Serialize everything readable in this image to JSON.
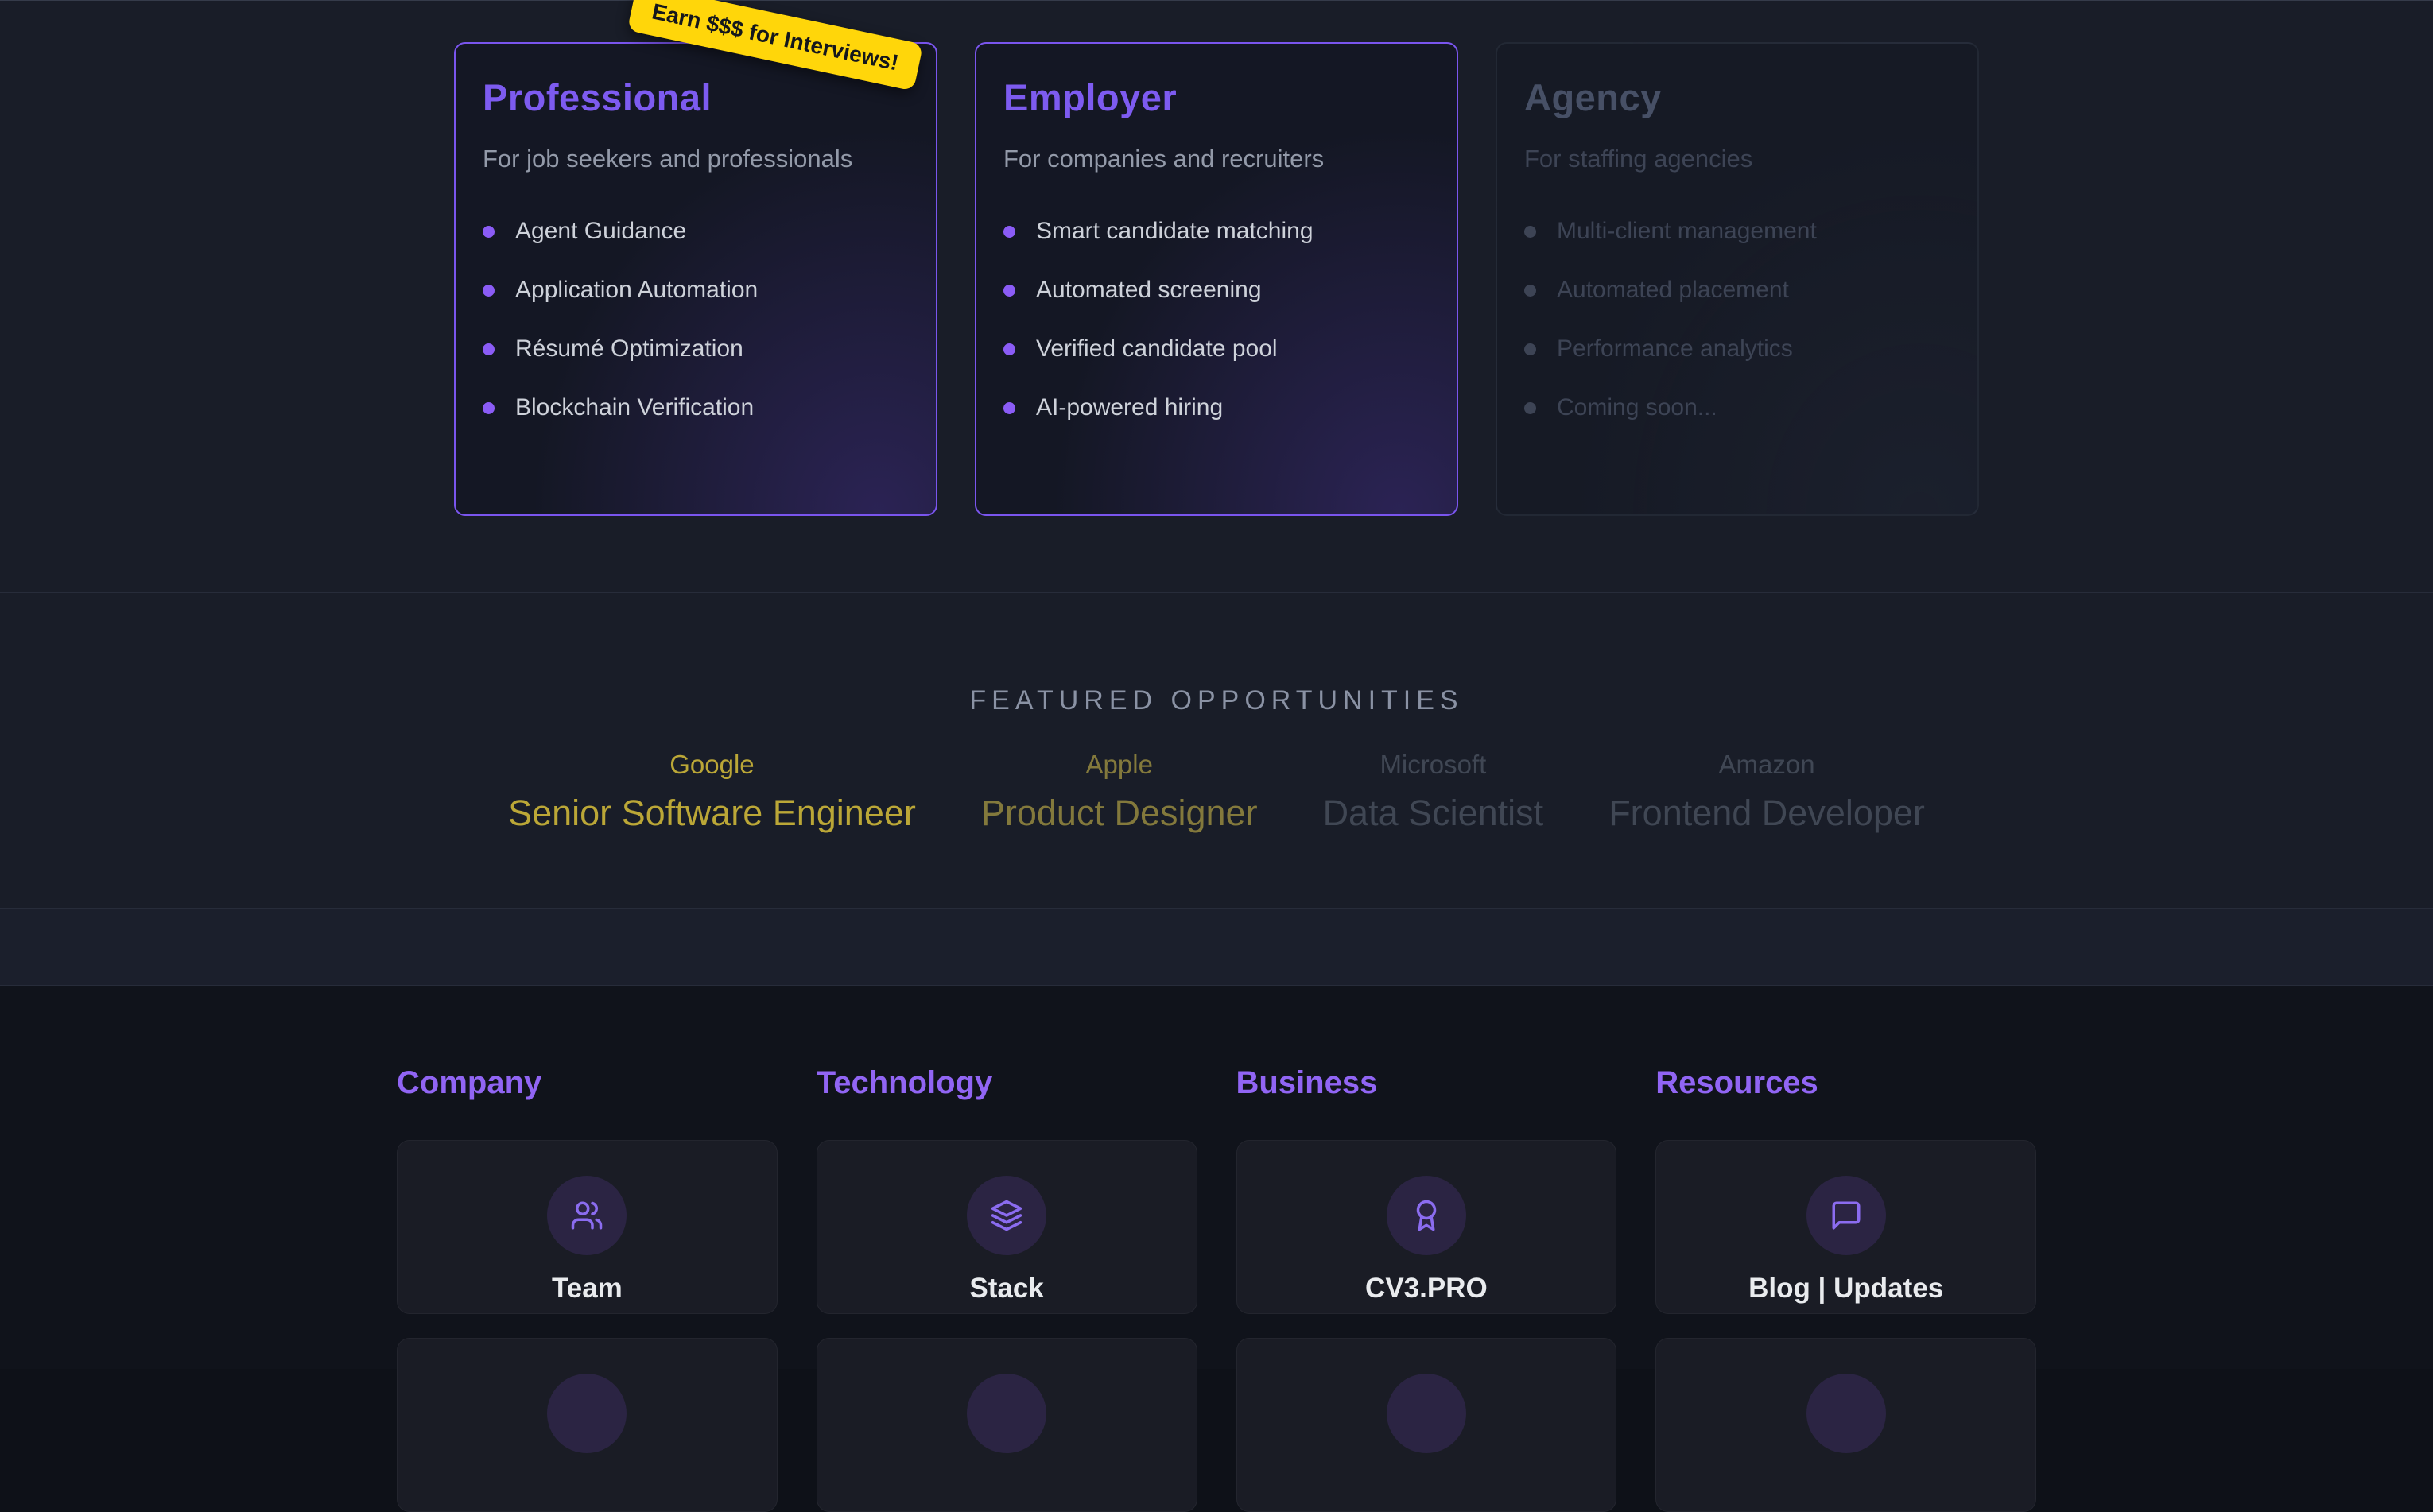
{
  "theme": {
    "accent_purple": "#7d5bf0",
    "footer_purple": "#9165f4",
    "badge_bg": "#ffd60a",
    "gold_active": "#bba737",
    "gold_dim": "#83793c",
    "muted_gray": "#404754"
  },
  "plans": [
    {
      "name": "Professional",
      "description": "For job seekers and professionals",
      "features": [
        "Agent Guidance",
        "Application Automation",
        "Résumé Optimization",
        "Blockchain Verification"
      ],
      "badge": "Earn $$$ for Interviews!",
      "state": "active"
    },
    {
      "name": "Employer",
      "description": "For companies and recruiters",
      "features": [
        "Smart candidate matching",
        "Automated screening",
        "Verified candidate pool",
        "AI-powered hiring"
      ],
      "badge": null,
      "state": "active"
    },
    {
      "name": "Agency",
      "description": "For staffing agencies",
      "features": [
        "Multi-client management",
        "Automated placement",
        "Performance analytics",
        "Coming soon..."
      ],
      "badge": null,
      "state": "disabled"
    }
  ],
  "featured": {
    "heading": "FEATURED OPPORTUNITIES",
    "jobs": [
      {
        "company": "Google",
        "role": "Senior Software Engineer",
        "emphasis": "high"
      },
      {
        "company": "Apple",
        "role": "Product Designer",
        "emphasis": "medium"
      },
      {
        "company": "Microsoft",
        "role": "Data Scientist",
        "emphasis": "low"
      },
      {
        "company": "Amazon",
        "role": "Frontend Developer",
        "emphasis": "low"
      }
    ]
  },
  "footer": {
    "columns": [
      {
        "title": "Company",
        "cards": [
          {
            "label": "Team",
            "icon": "users-icon"
          }
        ]
      },
      {
        "title": "Technology",
        "cards": [
          {
            "label": "Stack",
            "icon": "layers-icon"
          }
        ]
      },
      {
        "title": "Business",
        "cards": [
          {
            "label": "CV3.PRO",
            "icon": "award-icon"
          }
        ]
      },
      {
        "title": "Resources",
        "cards": [
          {
            "label": "Blog | Updates",
            "icon": "message-icon"
          }
        ]
      }
    ],
    "second_row_partially_visible": true
  }
}
